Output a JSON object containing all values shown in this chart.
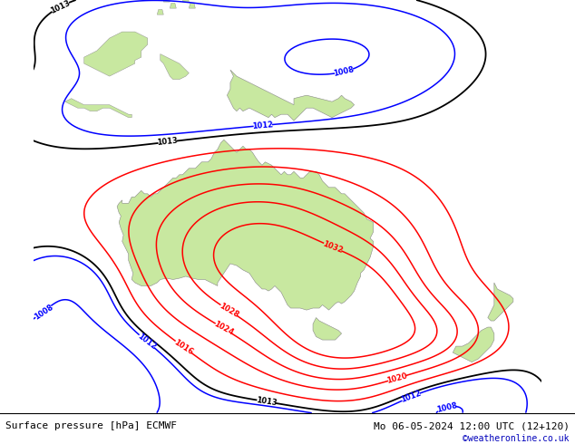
{
  "title_left": "Surface pressure [hPa] ECMWF",
  "title_right": "Mo 06-05-2024 12:00 UTC (12+120)",
  "watermark": "©weatheronline.co.uk",
  "ocean_color": "#d4dce8",
  "land_color": "#c8e8a0",
  "island_color": "#c8e8a0",
  "isobar_blue": "#0000ff",
  "isobar_red": "#ff0000",
  "isobar_black": "#000000",
  "figsize": [
    6.34,
    4.9
  ],
  "dpi": 100,
  "lon_min": 100,
  "lon_max": 180,
  "lat_min": -55,
  "lat_max": 10,
  "font_size_labels": 6,
  "font_size_title": 8,
  "font_size_watermark": 7
}
